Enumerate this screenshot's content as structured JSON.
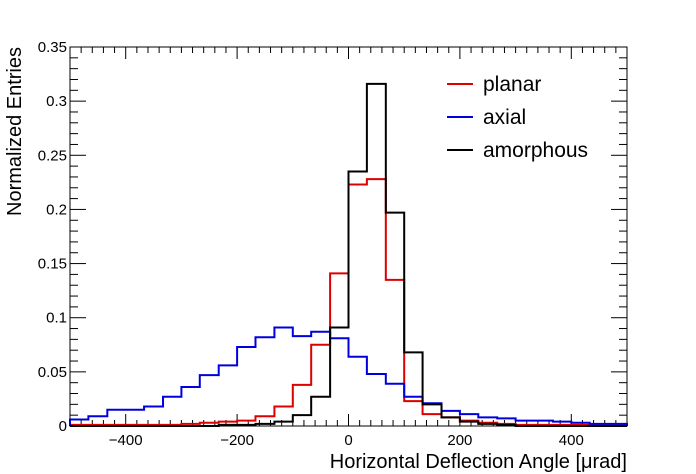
{
  "chart_data": {
    "type": "line",
    "title": "",
    "xlabel": "Horizontal Deflection Angle [μrad]",
    "ylabel": "Normalized Entries",
    "xlim": [
      -500,
      500
    ],
    "ylim": [
      0,
      0.35
    ],
    "x_ticks": [
      -400,
      -200,
      0,
      200,
      400
    ],
    "x_tick_labels": [
      "−400",
      "−200",
      "0",
      "200",
      "400"
    ],
    "y_ticks": [
      0,
      0.05,
      0.1,
      0.15,
      0.2,
      0.25,
      0.3,
      0.35
    ],
    "y_tick_labels": [
      "0",
      "0.05",
      "0.1",
      "0.15",
      "0.2",
      "0.25",
      "0.3",
      "0.35"
    ],
    "legend_position": "top-right",
    "bin_edges": [
      -500,
      -467,
      -433,
      -400,
      -367,
      -333,
      -300,
      -267,
      -233,
      -200,
      -167,
      -133,
      -100,
      -67,
      -33,
      0,
      33,
      67,
      100,
      133,
      167,
      200,
      233,
      267,
      300,
      333,
      367,
      400,
      433,
      467,
      500
    ],
    "series": [
      {
        "name": "planar",
        "color": "#dd0000",
        "values": [
          0.001,
          0.001,
          0.001,
          0.001,
          0.001,
          0.001,
          0.002,
          0.003,
          0.004,
          0.005,
          0.009,
          0.018,
          0.038,
          0.075,
          0.141,
          0.223,
          0.228,
          0.135,
          0.023,
          0.011,
          0.008,
          0.005,
          0.003,
          0.002,
          0.001,
          0.001,
          0.001,
          0.001,
          0.001,
          0.001
        ]
      },
      {
        "name": "axial",
        "color": "#0000dd",
        "values": [
          0.006,
          0.009,
          0.015,
          0.015,
          0.018,
          0.027,
          0.036,
          0.047,
          0.056,
          0.073,
          0.082,
          0.091,
          0.083,
          0.087,
          0.081,
          0.064,
          0.048,
          0.039,
          0.027,
          0.021,
          0.014,
          0.011,
          0.008,
          0.007,
          0.005,
          0.005,
          0.004,
          0.003,
          0.002,
          0.002
        ]
      },
      {
        "name": "amorphous",
        "color": "#000000",
        "values": [
          0.0,
          0.0,
          0.0,
          0.0,
          0.0,
          0.0,
          0.0,
          0.0,
          0.001,
          0.001,
          0.002,
          0.004,
          0.01,
          0.027,
          0.091,
          0.235,
          0.316,
          0.197,
          0.068,
          0.02,
          0.008,
          0.004,
          0.002,
          0.001,
          0.0,
          0.0,
          0.0,
          0.0,
          0.0,
          0.0
        ]
      }
    ]
  }
}
